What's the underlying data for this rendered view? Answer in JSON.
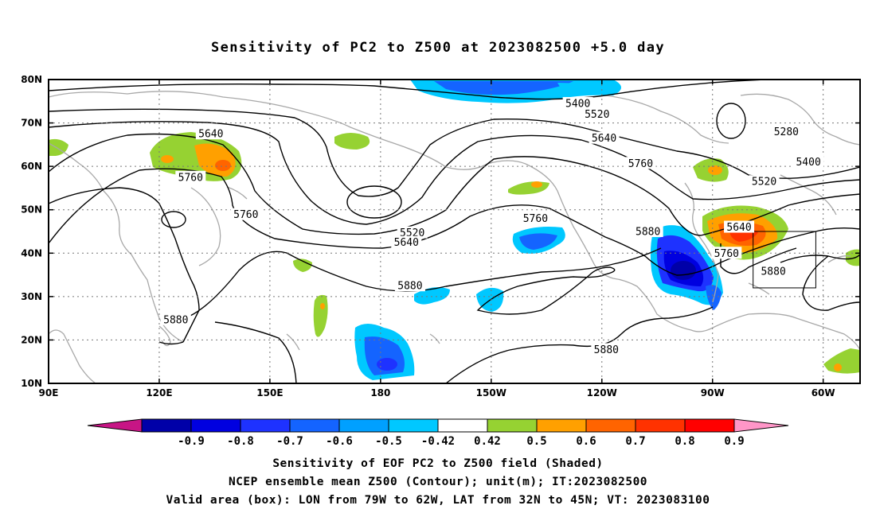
{
  "title": "Sensitivity of PC2 to Z500 at 2023082500 +5.0 day",
  "lat_ticks": [
    "80N",
    "70N",
    "60N",
    "50N",
    "40N",
    "30N",
    "20N",
    "10N"
  ],
  "lon_ticks": [
    "90E",
    "120E",
    "150E",
    "180",
    "150W",
    "120W",
    "90W",
    "60W"
  ],
  "contour_labels": [
    {
      "text": "5400",
      "lon": -126.5,
      "lat": 74.5
    },
    {
      "text": "5520",
      "lon": -121.3,
      "lat": 72.0
    },
    {
      "text": "5640",
      "lon": -119.4,
      "lat": 66.5
    },
    {
      "text": "5760",
      "lon": -109.5,
      "lat": 60.7
    },
    {
      "text": "5280",
      "lon": -70.0,
      "lat": 68.0
    },
    {
      "text": "5400",
      "lon": -64.0,
      "lat": 61.0
    },
    {
      "text": "5520",
      "lon": -76.0,
      "lat": 56.5
    },
    {
      "text": "5640",
      "lon": 134.0,
      "lat": 67.5
    },
    {
      "text": "5760",
      "lon": 128.5,
      "lat": 57.5
    },
    {
      "text": "5760",
      "lon": 143.5,
      "lat": 48.9
    },
    {
      "text": "5520",
      "lon": -171.4,
      "lat": 44.7
    },
    {
      "text": "5640",
      "lon": -173.0,
      "lat": 42.5
    },
    {
      "text": "5760",
      "lon": -138.0,
      "lat": 48.0
    },
    {
      "text": "5880",
      "lon": -107.5,
      "lat": 45.0
    },
    {
      "text": "5640",
      "lon": -82.8,
      "lat": 46.0
    },
    {
      "text": "5760",
      "lon": -86.2,
      "lat": 40.0
    },
    {
      "text": "5880",
      "lon": -73.5,
      "lat": 35.8
    },
    {
      "text": "5880",
      "lon": -172.0,
      "lat": 32.5
    },
    {
      "text": "5880",
      "lon": 124.5,
      "lat": 24.7
    },
    {
      "text": "5880",
      "lon": -118.8,
      "lat": 17.8
    }
  ],
  "valid_box": {
    "lon_w": -79,
    "lon_e": -62,
    "lat_s": 32,
    "lat_n": 45
  },
  "colorbar": {
    "labels": [
      "-0.9",
      "-0.8",
      "-0.7",
      "-0.6",
      "-0.5",
      "-0.42",
      "0.42",
      "0.5",
      "0.6",
      "0.7",
      "0.8",
      "0.9"
    ],
    "colors": [
      "#c71585",
      "#0000a8",
      "#0000e0",
      "#1e32ff",
      "#1464ff",
      "#00a0ff",
      "#00c8ff",
      "#ffffff",
      "#96d232",
      "#ffa000",
      "#ff6400",
      "#ff3200",
      "#ff0000",
      "#ff96c8"
    ]
  },
  "captions": [
    "Sensitivity of EOF PC2 to Z500 field (Shaded)",
    "NCEP ensemble mean Z500 (Contour); unit(m); IT:2023082500",
    "Valid area (box): LON from 79W to 62W, LAT from 32N to 45N; VT: 2023083100"
  ]
}
